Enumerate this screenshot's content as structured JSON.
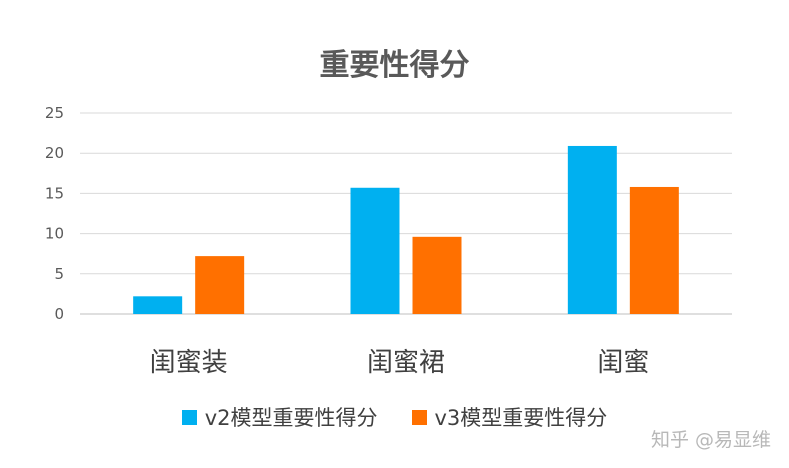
{
  "chart_data": {
    "type": "bar",
    "title": "重要性得分",
    "categories": [
      "闺蜜装",
      "闺蜜裙",
      "闺蜜"
    ],
    "series": [
      {
        "name": "v2模型重要性得分",
        "values": [
          2.2,
          15.7,
          20.9
        ],
        "color": "#00b0f0"
      },
      {
        "name": "v3模型重要性得分",
        "values": [
          7.2,
          9.6,
          15.8
        ],
        "color": "#ff7000"
      }
    ],
    "ylim": [
      0,
      25
    ],
    "yticks": [
      0,
      5,
      10,
      15,
      20,
      25
    ],
    "grid": true,
    "legend_position": "bottom",
    "xlabel": "",
    "ylabel": ""
  },
  "watermark": "知乎 @易显维"
}
